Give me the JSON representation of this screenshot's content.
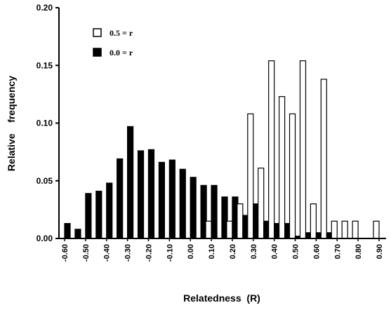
{
  "chart_data": {
    "type": "bar",
    "xlabel": "Relatedness  (R)",
    "ylabel": "Relative    frequency",
    "ylim": [
      0,
      0.2
    ],
    "y_ticks": [
      "0.00",
      "0.05",
      "0.10",
      "0.15",
      "0.20"
    ],
    "x_ticks": [
      "-0.60",
      "-0.50",
      "-0.40",
      "-0.30",
      "-0.20",
      "-0.10",
      "0.00",
      "0.10",
      "0.20",
      "0.30",
      "0.40",
      "0.50",
      "0.60",
      "0.70",
      "0.80",
      "0.90"
    ],
    "x": [
      -0.6,
      -0.55,
      -0.5,
      -0.45,
      -0.4,
      -0.35,
      -0.3,
      -0.25,
      -0.2,
      -0.15,
      -0.1,
      -0.05,
      0.0,
      0.05,
      0.1,
      0.15,
      0.2,
      0.25,
      0.3,
      0.35,
      0.4,
      0.45,
      0.5,
      0.55,
      0.6,
      0.65,
      0.7,
      0.75,
      0.8,
      0.85,
      0.9
    ],
    "series": [
      {
        "name": "0.5 = r",
        "fill": "white",
        "values": [
          0,
          0,
          0,
          0,
          0,
          0,
          0,
          0,
          0,
          0,
          0,
          0,
          0,
          0,
          0.015,
          0,
          0.015,
          0.03,
          0.108,
          0.061,
          0.154,
          0.123,
          0.108,
          0.154,
          0.03,
          0.138,
          0.015,
          0.015,
          0.015,
          0,
          0.015
        ]
      },
      {
        "name": "0.0 = r",
        "fill": "black",
        "values": [
          0.013,
          0.008,
          0.039,
          0.041,
          0.048,
          0.069,
          0.097,
          0.076,
          0.077,
          0.066,
          0.068,
          0.06,
          0.053,
          0.046,
          0.046,
          0.036,
          0.036,
          0.02,
          0.03,
          0.015,
          0.013,
          0.013,
          0.002,
          0.005,
          0.005,
          0.005,
          0,
          0,
          0,
          0,
          0
        ]
      }
    ],
    "legend_placement": "top-left",
    "grid": false
  }
}
